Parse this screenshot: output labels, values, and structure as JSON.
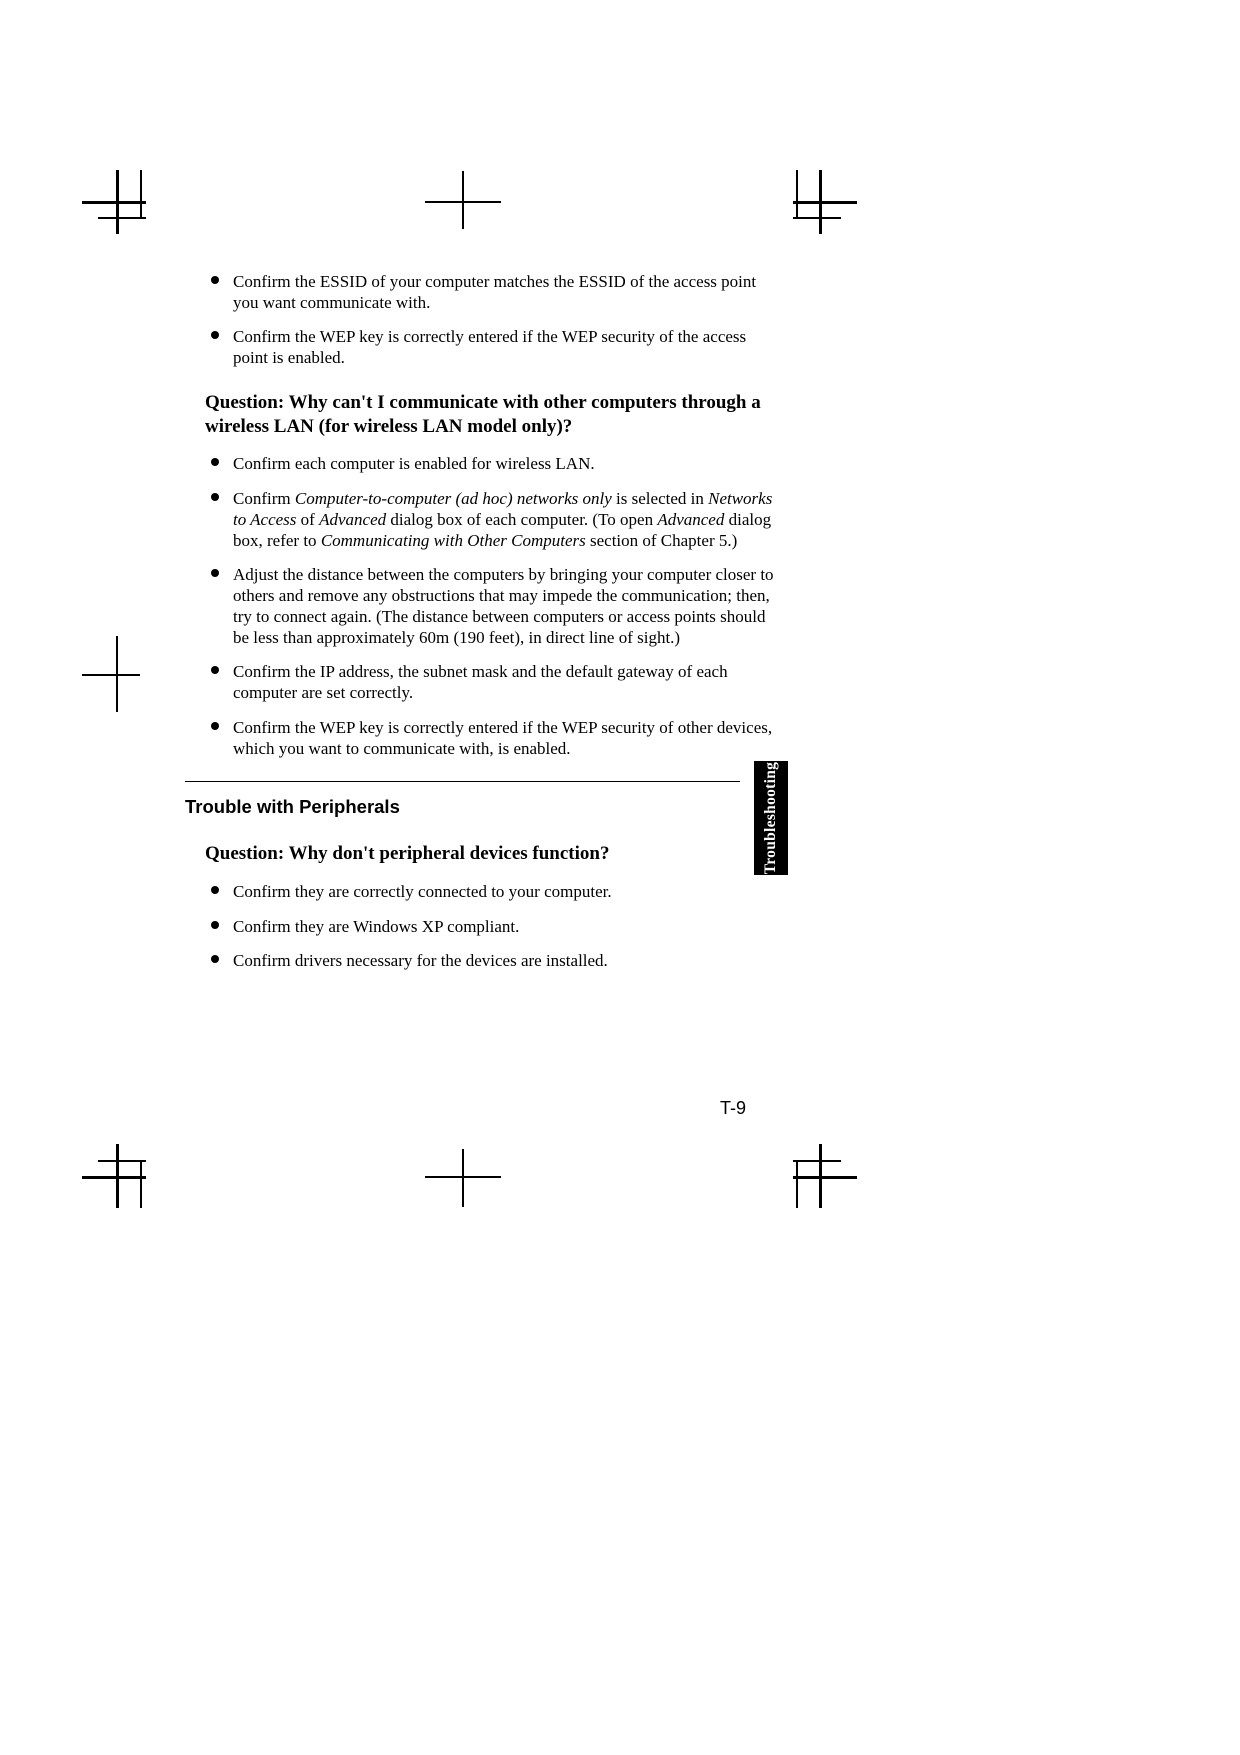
{
  "bullets_top": [
    "Confirm the ESSID of your computer matches the ESSID of the access point you want communicate with.",
    "Confirm the WEP key is correctly entered if the WEP security of the access point is enabled."
  ],
  "question1": "Question: Why can't I communicate with other computers through a wireless LAN (for wireless LAN model only)?",
  "q1_bullets": {
    "b0": "Confirm each computer is enabled for wireless LAN.",
    "b1_pre": "Confirm ",
    "b1_i1": "Computer-to-computer (ad hoc) networks only",
    "b1_mid1": " is selected in ",
    "b1_i2": "Networks to Access",
    "b1_mid2": " of ",
    "b1_i3": "Advanced",
    "b1_mid3": " dialog box of each computer. (To open ",
    "b1_i4": "Advanced",
    "b1_mid4": " dialog box, refer to ",
    "b1_i5": "Communicating with Other Computers",
    "b1_end": " section of Chapter 5.)",
    "b2": "Adjust the distance between the computers by bringing your computer closer to others and remove any obstructions that may impede the communication; then, try to connect again. (The distance between computers or access points should be less than approximately 60m (190 feet), in direct line of sight.)",
    "b3": "Confirm the IP address, the subnet mask and the default gateway of each computer are set correctly.",
    "b4": "Confirm the WEP key is correctly entered if the WEP security of other devices, which you want to communicate with, is enabled."
  },
  "section2_heading": "Trouble with Peripherals",
  "question2": "Question: Why don't peripheral devices function?",
  "q2_bullets": [
    "Confirm they are correctly connected to your computer.",
    "Confirm they are Windows XP compliant.",
    "Confirm drivers necessary for the devices are installed."
  ],
  "side_tab": "Troubleshooting",
  "page_number": "T-9"
}
